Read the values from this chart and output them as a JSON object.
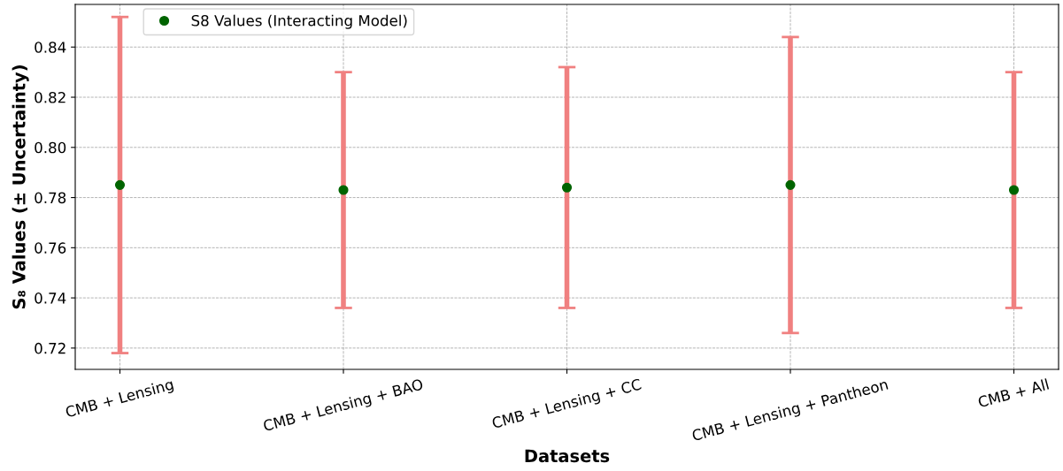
{
  "chart_data": {
    "type": "scatter",
    "xlabel": "Datasets",
    "ylabel": "S₈ Values (± Uncertainty)",
    "categories": [
      "CMB + Lensing",
      "CMB + Lensing + BAO",
      "CMB + Lensing + CC",
      "CMB + Lensing + Pantheon",
      "CMB + All"
    ],
    "series": [
      {
        "name": "S8 Values (Interacting Model)",
        "color": "#006400",
        "values": [
          0.785,
          0.783,
          0.784,
          0.785,
          0.783
        ],
        "errors": [
          0.067,
          0.047,
          0.048,
          0.059,
          0.047
        ]
      }
    ],
    "ylim": [
      0.7115,
      0.857
    ],
    "yticks": [
      0.72,
      0.74,
      0.76,
      0.78,
      {
        "value": 0.8,
        "label": "0.80"
      },
      0.82,
      0.84
    ],
    "grid": true,
    "legend": "top left",
    "marker": "circle"
  }
}
